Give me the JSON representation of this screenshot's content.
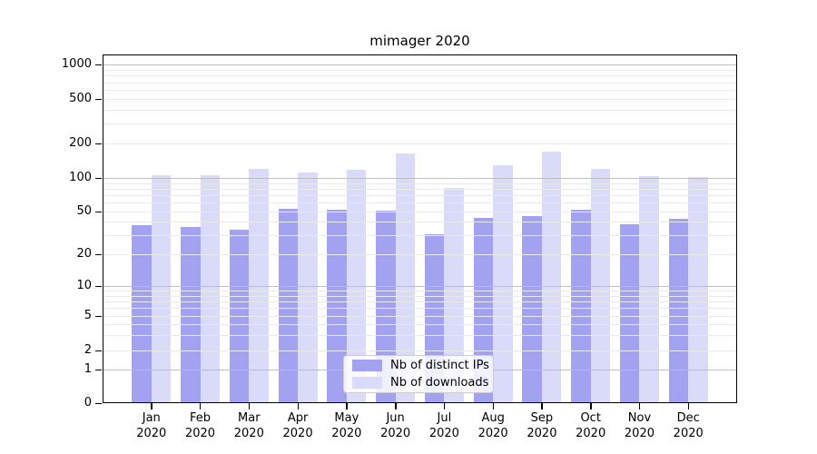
{
  "chart_data": {
    "type": "bar",
    "title": "mimager 2020",
    "categories": [
      "Jan",
      "Feb",
      "Mar",
      "Apr",
      "May",
      "Jun",
      "Jul",
      "Aug",
      "Sep",
      "Oct",
      "Nov",
      "Dec"
    ],
    "x_year": "2020",
    "series": [
      {
        "name": "Nb of distinct IPs",
        "color": "#a2a2f0",
        "values": [
          37,
          36,
          34,
          53,
          52,
          51,
          31,
          44,
          45,
          52,
          38,
          43
        ]
      },
      {
        "name": "Nb of downloads",
        "color": "#dadaf9",
        "values": [
          106,
          105,
          120,
          112,
          117,
          164,
          81,
          128,
          170,
          120,
          103,
          101
        ]
      }
    ],
    "yticks": [
      0,
      1,
      2,
      5,
      10,
      20,
      50,
      100,
      200,
      500,
      1000
    ],
    "yscale": "symlog",
    "ylim": [
      0,
      1300
    ],
    "grid": true,
    "grid_major_color": "#bdbdbd",
    "grid_minor_color": "#e9e9e9",
    "axis_color": "#000000",
    "legend_position": "bottom-center",
    "xlabel": "",
    "ylabel": ""
  }
}
